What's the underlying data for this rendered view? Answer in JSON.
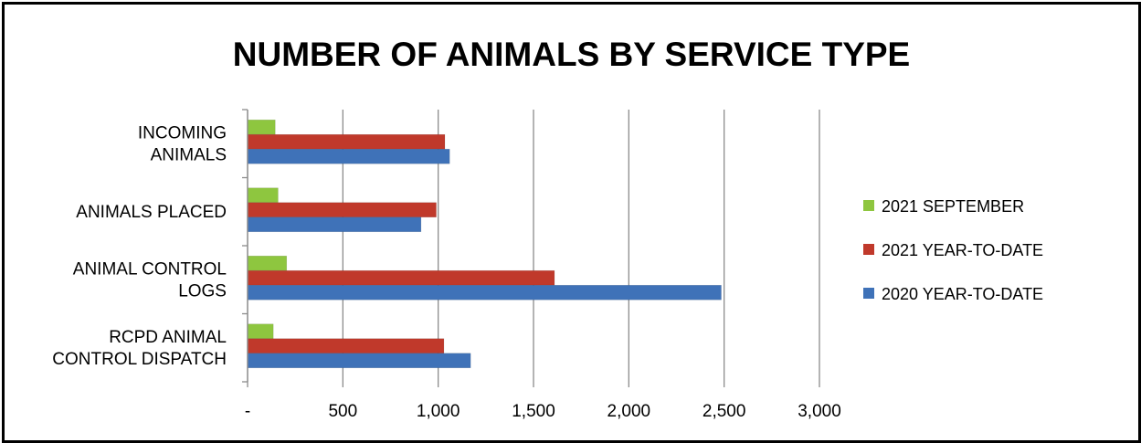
{
  "chart_data": {
    "type": "bar",
    "orientation": "horizontal",
    "title": "NUMBER OF ANIMALS BY SERVICE TYPE",
    "categories": [
      [
        "INCOMING",
        "ANIMALS"
      ],
      [
        "ANIMALS PLACED"
      ],
      [
        "ANIMAL CONTROL",
        "LOGS"
      ],
      [
        "RCPD ANIMAL",
        "CONTROL DISPATCH"
      ]
    ],
    "series": [
      {
        "name": "2021 SEPTEMBER",
        "color": "#8ec63f",
        "values": [
          145,
          160,
          205,
          135
        ]
      },
      {
        "name": "2021 YEAR-TO-DATE",
        "color": "#c0392b",
        "values": [
          1035,
          990,
          1610,
          1030
        ]
      },
      {
        "name": "2020 YEAR-TO-DATE",
        "color": "#3f72b8",
        "values": [
          1060,
          910,
          2485,
          1170
        ]
      }
    ],
    "xlim": [
      0,
      3000
    ],
    "xticks": [
      "-",
      "500",
      "1,000",
      "1,500",
      "2,000",
      "2,500",
      "3,000"
    ],
    "grid": true,
    "legend_position": "right"
  }
}
